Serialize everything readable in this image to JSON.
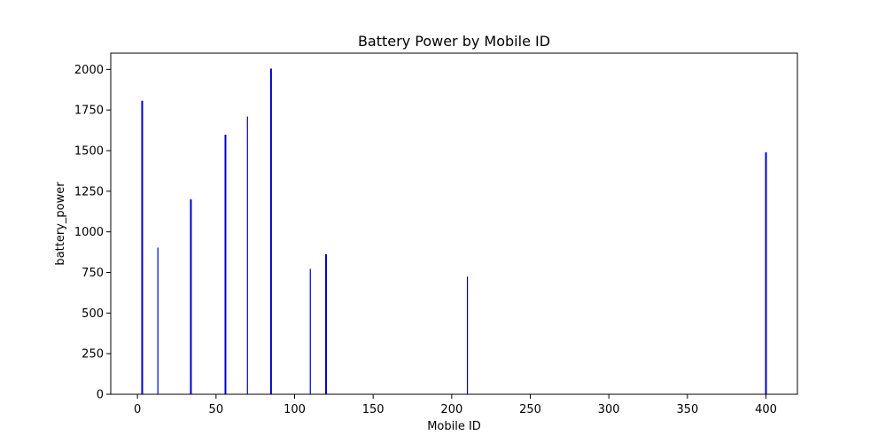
{
  "chart_data": {
    "type": "bar",
    "title": "Battery Power by Mobile ID",
    "xlabel": "Mobile ID",
    "ylabel": "battery_power",
    "xlim": [
      -17,
      420
    ],
    "ylim": [
      0,
      2100
    ],
    "xticks": [
      0,
      50,
      100,
      150,
      200,
      250,
      300,
      350,
      400
    ],
    "yticks": [
      0,
      250,
      500,
      750,
      1000,
      1250,
      1500,
      1750,
      2000
    ],
    "grid": false,
    "bar_color": "#0000cc",
    "bars": [
      {
        "x": 3,
        "value": 1807,
        "width": 1.0
      },
      {
        "x": 13,
        "value": 903,
        "width": 0.6
      },
      {
        "x": 34,
        "value": 1200,
        "width": 1.0
      },
      {
        "x": 56,
        "value": 1598,
        "width": 1.0
      },
      {
        "x": 70,
        "value": 1710,
        "width": 0.6
      },
      {
        "x": 85,
        "value": 2005,
        "width": 1.0
      },
      {
        "x": 110,
        "value": 772,
        "width": 0.6
      },
      {
        "x": 120,
        "value": 862,
        "width": 1.0
      },
      {
        "x": 210,
        "value": 725,
        "width": 0.6
      },
      {
        "x": 400,
        "value": 1490,
        "width": 1.0
      }
    ]
  }
}
